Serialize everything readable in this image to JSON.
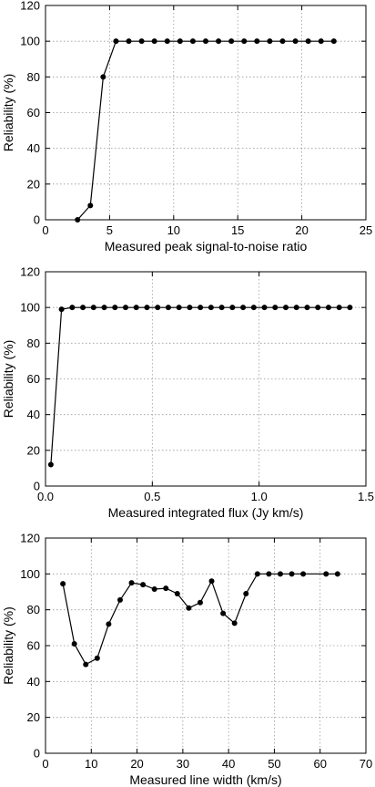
{
  "chart_data": [
    {
      "type": "line",
      "xlabel": "Measured peak signal-to-noise ratio",
      "ylabel": "Reliability (%)",
      "xlim": [
        0,
        25
      ],
      "ylim": [
        0,
        120
      ],
      "xticks": [
        0,
        5,
        10,
        15,
        20,
        25
      ],
      "yticks": [
        0,
        20,
        40,
        60,
        80,
        100,
        120
      ],
      "xtick_labels": [
        "0",
        "5",
        "10",
        "15",
        "20",
        "25"
      ],
      "ytick_labels": [
        "0",
        "20",
        "40",
        "60",
        "80",
        "100",
        "120"
      ],
      "grid": true,
      "series": [
        {
          "x": [
            2.5,
            3.5,
            4.5,
            5.5,
            6.5,
            7.5,
            8.5,
            9.5,
            10.5,
            11.5,
            12.5,
            13.5,
            14.5,
            15.5,
            16.5,
            17.5,
            18.5,
            19.5,
            20.5,
            21.5,
            22.5
          ],
          "y": [
            0,
            8,
            80,
            100,
            100,
            100,
            100,
            100,
            100,
            100,
            100,
            100,
            100,
            100,
            100,
            100,
            100,
            100,
            100,
            100,
            100
          ]
        }
      ]
    },
    {
      "type": "line",
      "xlabel": "Measured integrated flux (Jy km/s)",
      "ylabel": "Reliability (%)",
      "xlim": [
        0,
        1.5
      ],
      "ylim": [
        0,
        120
      ],
      "xticks": [
        0,
        0.5,
        1.0,
        1.5
      ],
      "yticks": [
        0,
        20,
        40,
        60,
        80,
        100,
        120
      ],
      "xtick_labels": [
        "0.0",
        "0.5",
        "1.0",
        "1.5"
      ],
      "ytick_labels": [
        "0",
        "20",
        "40",
        "60",
        "80",
        "100",
        "120"
      ],
      "grid": true,
      "series": [
        {
          "x": [
            0.025,
            0.075,
            0.125,
            0.175,
            0.225,
            0.275,
            0.325,
            0.375,
            0.425,
            0.475,
            0.525,
            0.575,
            0.625,
            0.675,
            0.725,
            0.775,
            0.825,
            0.875,
            0.925,
            0.975,
            1.025,
            1.075,
            1.125,
            1.175,
            1.225,
            1.275,
            1.325,
            1.375,
            1.425
          ],
          "y": [
            12,
            99,
            100,
            100,
            100,
            100,
            100,
            100,
            100,
            100,
            100,
            100,
            100,
            100,
            100,
            100,
            100,
            100,
            100,
            100,
            100,
            100,
            100,
            100,
            100,
            100,
            100,
            100,
            100
          ]
        }
      ]
    },
    {
      "type": "line",
      "xlabel": "Measured line width (km/s)",
      "ylabel": "Reliability (%)",
      "xlim": [
        0,
        70
      ],
      "ylim": [
        0,
        120
      ],
      "xticks": [
        0,
        10,
        20,
        30,
        40,
        50,
        60,
        70
      ],
      "yticks": [
        0,
        20,
        40,
        60,
        80,
        100,
        120
      ],
      "xtick_labels": [
        "0",
        "10",
        "20",
        "30",
        "40",
        "50",
        "60",
        "70"
      ],
      "ytick_labels": [
        "0",
        "20",
        "40",
        "60",
        "80",
        "100",
        "120"
      ],
      "grid": true,
      "series": [
        {
          "x": [
            3.8,
            6.3,
            8.8,
            11.3,
            13.8,
            16.3,
            18.8,
            21.3,
            23.8,
            26.3,
            28.8,
            31.3,
            33.8,
            36.3,
            38.8,
            41.3,
            43.8,
            46.3,
            48.8,
            51.3,
            53.8,
            56.3,
            61.3,
            63.8
          ],
          "y": [
            94.5,
            61,
            49.5,
            53,
            72,
            85.5,
            95,
            94,
            91.5,
            92,
            89,
            81,
            84,
            96,
            78,
            72.5,
            89,
            100,
            100,
            100,
            100,
            100,
            100,
            100
          ]
        }
      ]
    }
  ]
}
